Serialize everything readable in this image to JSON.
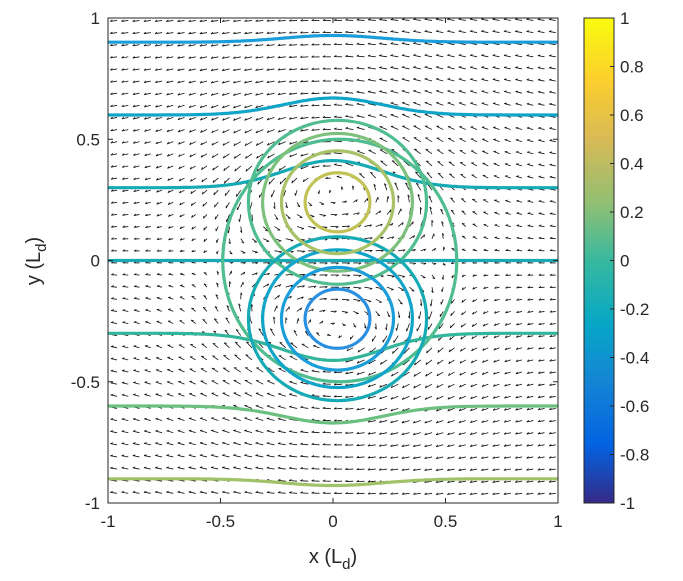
{
  "chart_data": {
    "type": "contour",
    "xlabel": {
      "main": "x (L",
      "sub": "d",
      "close": ")"
    },
    "ylabel": {
      "main": "y (L",
      "sub": "d",
      "close": ")"
    },
    "xlim": [
      -1,
      1
    ],
    "ylim": [
      -1,
      1
    ],
    "xticks": [
      -1,
      -0.5,
      0,
      0.5,
      1
    ],
    "xtick_labels": [
      "-1",
      "-0.5",
      "0",
      "0.5",
      "1"
    ],
    "yticks": [
      -1,
      -0.5,
      0,
      0.5,
      1
    ],
    "ytick_labels": [
      "-1",
      "-0.5",
      "0",
      "0.5",
      "1"
    ],
    "grid": false,
    "colorbar": {
      "clim": [
        -1,
        1
      ],
      "ticks": [
        -1,
        -0.8,
        -0.6,
        -0.4,
        -0.2,
        0,
        0.2,
        0.4,
        0.6,
        0.8,
        1
      ],
      "tick_labels": [
        "-1",
        "-0.8",
        "-0.6",
        "-0.4",
        "-0.2",
        "0",
        "0.2",
        "0.4",
        "0.6",
        "0.8",
        "1"
      ],
      "colormap": "parula"
    },
    "contour_levels": [
      {
        "value": -0.1,
        "color": "#1a9dd8"
      },
      {
        "value": -0.05,
        "color": "#10a4c8"
      },
      {
        "value": -0.0,
        "color": "#16aab4"
      },
      {
        "value": 0.05,
        "color": "#33b59c"
      },
      {
        "value": 0.1,
        "color": "#6bc080"
      },
      {
        "value": 0.15,
        "color": "#a0c268"
      }
    ],
    "field_lines": [
      {
        "y": 0.9,
        "value": -0.1
      },
      {
        "y": 0.6,
        "value": -0.05
      },
      {
        "y": 0.3,
        "value": -0.02
      },
      {
        "y": 0.0,
        "value": 0.0
      },
      {
        "y": -0.3,
        "value": 0.05
      },
      {
        "y": -0.6,
        "value": 0.1
      },
      {
        "y": -0.9,
        "value": 0.15
      }
    ],
    "vortex_interior_levels": [
      0.2,
      0.35,
      0.55,
      0.8
    ],
    "quiver": {
      "spacing": 0.08,
      "scale": 0.06
    }
  }
}
